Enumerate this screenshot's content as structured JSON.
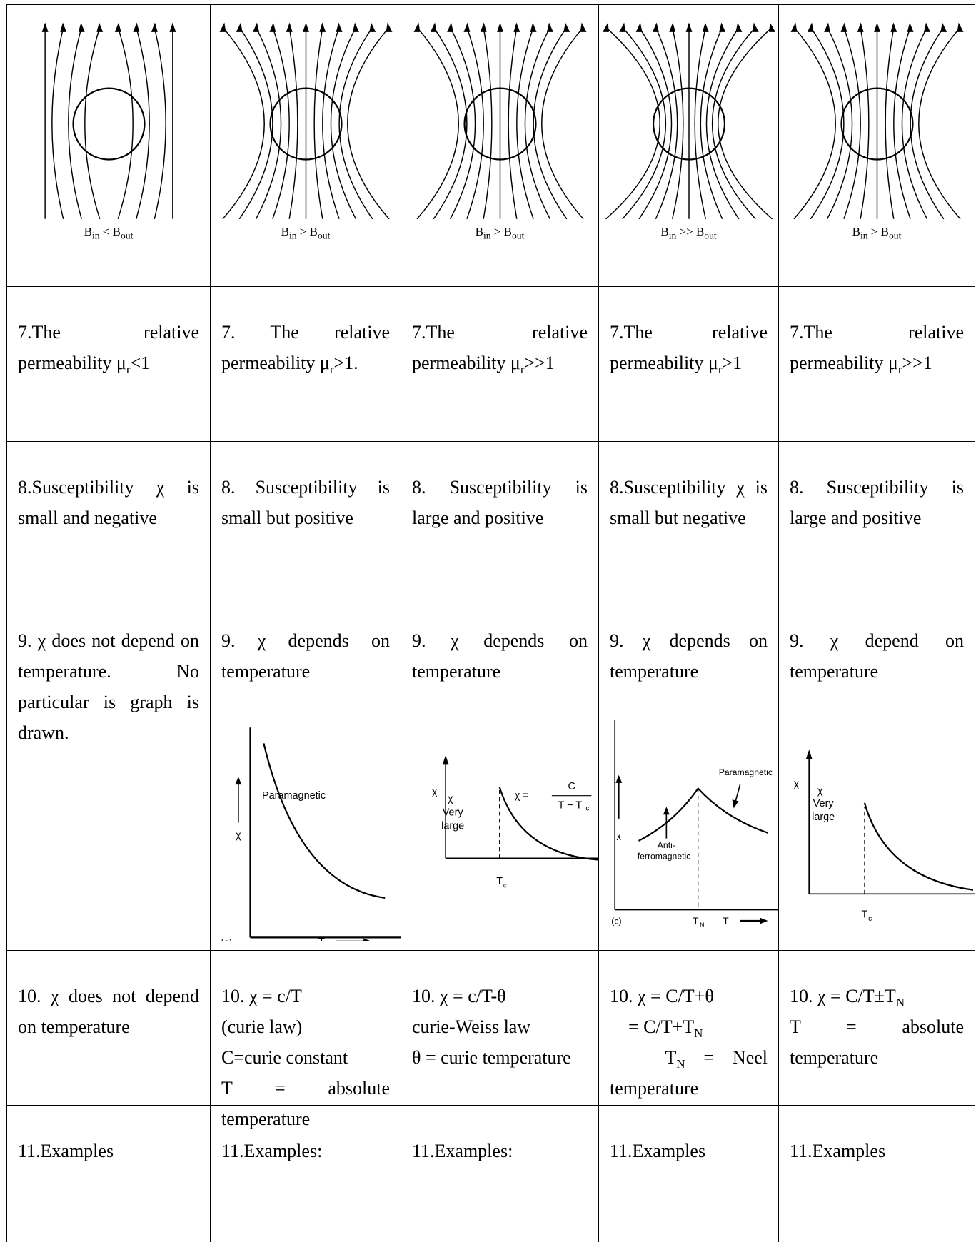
{
  "table": {
    "rows": [
      {
        "cells": [
          {
            "caption": [
              "B",
              {
                "sub": "in"
              },
              " < B",
              {
                "sub": "out"
              }
            ]
          },
          {
            "caption": [
              "B",
              {
                "sub": "in"
              },
              " > B",
              {
                "sub": "out"
              }
            ]
          },
          {
            "caption": [
              "B",
              {
                "sub": "in"
              },
              " > B",
              {
                "sub": "out"
              }
            ]
          },
          {
            "caption": [
              "B",
              {
                "sub": "in"
              },
              " >> B",
              {
                "sub": "out"
              }
            ]
          },
          {
            "caption": [
              "B",
              {
                "sub": "in"
              },
              " > B",
              {
                "sub": "out"
              }
            ]
          }
        ]
      },
      {
        "cells": [
          {
            "paras": [
              [
                "7.The relative permeability μ",
                {
                  "sub": "r"
                },
                "<1"
              ]
            ]
          },
          {
            "paras": [
              [
                "7. The relative permeability μ",
                {
                  "sub": "r"
                },
                ">1."
              ]
            ]
          },
          {
            "paras": [
              [
                "7.The relative permeability μ",
                {
                  "sub": "r"
                },
                ">>1"
              ]
            ]
          },
          {
            "paras": [
              [
                "7.The relative permeability μ",
                {
                  "sub": "r"
                },
                ">1"
              ]
            ]
          },
          {
            "paras": [
              [
                "7.The relative permeability μ",
                {
                  "sub": "r"
                },
                ">>1"
              ]
            ]
          }
        ]
      },
      {
        "cells": [
          {
            "paras": [
              [
                "8.Susceptibility χ is small and negative"
              ]
            ]
          },
          {
            "paras": [
              [
                "8. Susceptibility is small but positive"
              ]
            ]
          },
          {
            "paras": [
              [
                "8. Susceptibility is large and positive"
              ]
            ]
          },
          {
            "paras": [
              [
                "8.Susceptibility χ is small but negative"
              ]
            ]
          },
          {
            "paras": [
              [
                "8. Susceptibility is large and positive"
              ]
            ]
          }
        ]
      },
      {
        "cells": [
          {
            "paras": [
              [
                "9. χ does not depend on temperature. No particular is graph is drawn."
              ]
            ]
          },
          {
            "paras": [
              [
                "9. χ depends on temperature"
              ]
            ],
            "graph": {
              "labels": [
                "Paramagnetic",
                "χ",
                "(a)",
                "T"
              ]
            }
          },
          {
            "paras": [
              [
                "9. χ depends on temperature"
              ]
            ],
            "graph": {
              "labels": [
                "χ",
                "χ",
                "Very",
                "large",
                "χ =",
                "C",
                "T − T",
                "c",
                "T",
                "c"
              ]
            }
          },
          {
            "paras": [
              [
                "9. χ depends on temperature"
              ]
            ],
            "graph": {
              "labels": [
                "Paramagnetic",
                "χ",
                "Anti-",
                "ferromagnetic",
                "(c)",
                "T",
                "N",
                "T"
              ]
            }
          },
          {
            "paras": [
              [
                "9. χ depend on temperature"
              ]
            ],
            "graph": {
              "labels": [
                "χ",
                "χ",
                "Very",
                "large",
                "T",
                "c"
              ]
            }
          }
        ]
      },
      {
        "cells": [
          {
            "paras": [
              [
                "10. χ does not depend on temperature"
              ]
            ]
          },
          {
            "paras": [
              [
                "10. χ = c/T"
              ],
              [
                "(curie law)"
              ],
              [
                "C=curie constant"
              ],
              [
                "T = absolute temperature"
              ]
            ]
          },
          {
            "paras": [
              [
                "10. χ = c/T-θ"
              ],
              [
                "curie-Weiss law"
              ],
              [
                "θ = curie temperature"
              ]
            ]
          },
          {
            "paras": [
              [
                "10. χ = C/T+θ"
              ],
              [
                "    = C/T+T",
                {
                  "sub": "N"
                }
              ],
              [
                "   T",
                {
                  "sub": "N"
                },
                " = Neel temperature"
              ]
            ]
          },
          {
            "paras": [
              [
                "10. χ = C/T±T",
                {
                  "sub": "N"
                }
              ],
              [
                "T = absolute temperature"
              ]
            ]
          }
        ]
      },
      {
        "cells": [
          {
            "paras": [
              [
                "11.Examples"
              ]
            ]
          },
          {
            "paras": [
              [
                "11.Examples:"
              ]
            ]
          },
          {
            "paras": [
              [
                "11.Examples:"
              ]
            ]
          },
          {
            "paras": [
              [
                "11.Examples"
              ]
            ]
          },
          {
            "paras": [
              [
                "11.Examples"
              ]
            ]
          }
        ]
      }
    ]
  }
}
